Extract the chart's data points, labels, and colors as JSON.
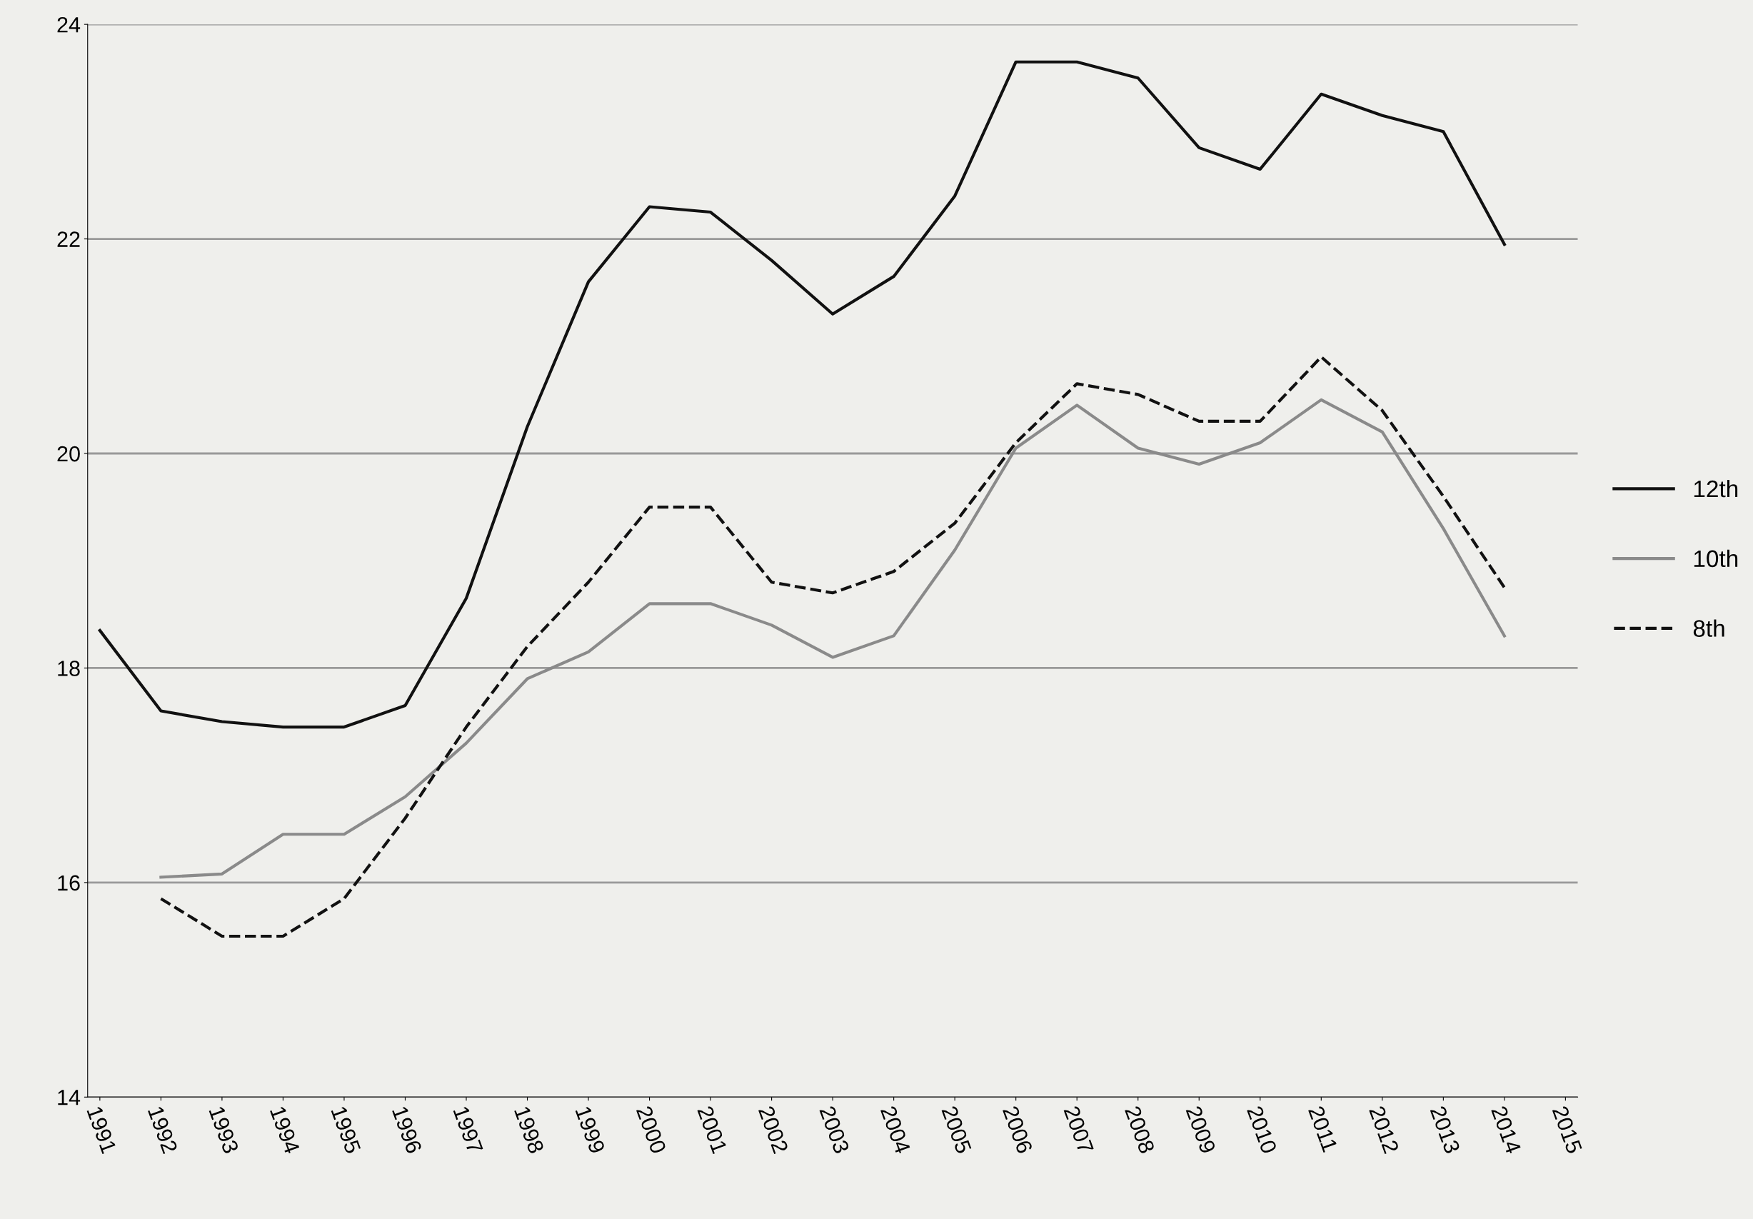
{
  "chart_data": {
    "type": "line",
    "categories": [
      "1991",
      "1992",
      "1993",
      "1994",
      "1995",
      "1996",
      "1997",
      "1998",
      "1999",
      "2000",
      "2001",
      "2002",
      "2003",
      "2004",
      "2005",
      "2006",
      "2007",
      "2008",
      "2009",
      "2010",
      "2011",
      "2012",
      "2013",
      "2014",
      "2015"
    ],
    "ylim": [
      14,
      24
    ],
    "yticks": [
      14,
      16,
      18,
      20,
      22,
      24
    ],
    "grid": "y",
    "legend": "right",
    "marker": "none",
    "series": [
      {
        "name": "12th",
        "color": "#111111",
        "line_style": "solid",
        "values": [
          18.35,
          17.6,
          17.5,
          17.45,
          17.45,
          17.65,
          18.65,
          20.25,
          21.6,
          22.3,
          22.25,
          21.8,
          21.3,
          21.65,
          22.4,
          23.65,
          23.65,
          23.5,
          22.85,
          22.65,
          23.35,
          23.15,
          23.0,
          21.95,
          null
        ]
      },
      {
        "name": "10th",
        "color": "#8a8a8a",
        "line_style": "solid",
        "values": [
          null,
          16.05,
          16.08,
          16.45,
          16.45,
          16.8,
          17.3,
          17.9,
          18.15,
          18.6,
          18.6,
          18.4,
          18.1,
          18.3,
          19.1,
          20.05,
          20.45,
          20.05,
          19.9,
          20.1,
          20.5,
          20.2,
          19.3,
          18.3,
          null
        ]
      },
      {
        "name": "8th",
        "color": "#111111",
        "line_style": "dashed",
        "values": [
          null,
          15.85,
          15.5,
          15.5,
          15.85,
          16.6,
          17.45,
          18.2,
          18.8,
          19.5,
          19.5,
          18.8,
          18.7,
          18.9,
          19.35,
          20.1,
          20.65,
          20.55,
          20.3,
          20.3,
          20.9,
          20.4,
          19.6,
          18.75,
          null
        ]
      }
    ]
  }
}
